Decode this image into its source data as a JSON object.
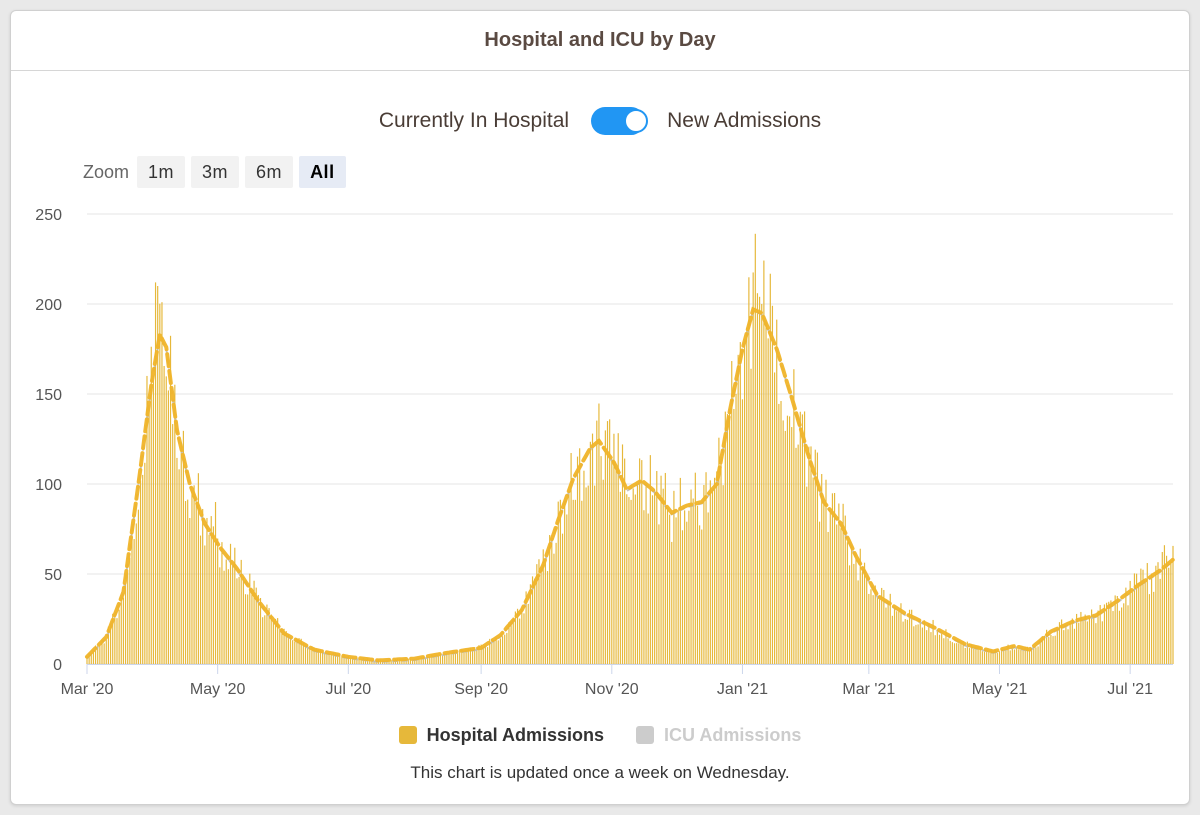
{
  "header": {
    "title": "Hospital and ICU by Day"
  },
  "toggle": {
    "left_label": "Currently In Hospital",
    "right_label": "New Admissions",
    "state": "New Admissions"
  },
  "zoom": {
    "label": "Zoom",
    "buttons": [
      {
        "label": "1m",
        "active": false
      },
      {
        "label": "3m",
        "active": false
      },
      {
        "label": "6m",
        "active": false
      },
      {
        "label": "All",
        "active": true
      }
    ]
  },
  "legend": {
    "hospital": {
      "label": "Hospital Admissions",
      "color": "#e6b83a"
    },
    "icu": {
      "label": "ICU Admissions",
      "color": "#cccccc"
    }
  },
  "note": "This chart is updated once a week on Wednesday.",
  "colors": {
    "bar": "#e6b83a",
    "line": "#f0b429",
    "icu_line": "#bdbdbd",
    "grid": "#e6e6e6"
  },
  "chart_data": {
    "type": "bar",
    "x_start": "2020-03-01",
    "x_end": "2021-07-21",
    "ylim": [
      0,
      250
    ],
    "yticks": [
      0,
      50,
      100,
      150,
      200,
      250
    ],
    "xtick_labels": [
      "Mar '20",
      "May '20",
      "Jul '20",
      "Sep '20",
      "Nov '20",
      "Jan '21",
      "Mar '21",
      "May '21",
      "Jul '21"
    ],
    "xtick_dates": [
      "2020-03-01",
      "2020-05-01",
      "2020-07-01",
      "2020-09-01",
      "2020-11-01",
      "2021-01-01",
      "2021-03-01",
      "2021-05-01",
      "2021-07-01"
    ],
    "trend_knots": [
      [
        "2020-03-01",
        4
      ],
      [
        "2020-03-10",
        15
      ],
      [
        "2020-03-18",
        40
      ],
      [
        "2020-03-25",
        100
      ],
      [
        "2020-03-31",
        155
      ],
      [
        "2020-04-04",
        183
      ],
      [
        "2020-04-07",
        176
      ],
      [
        "2020-04-12",
        130
      ],
      [
        "2020-04-18",
        100
      ],
      [
        "2020-04-25",
        78
      ],
      [
        "2020-05-02",
        65
      ],
      [
        "2020-05-10",
        53
      ],
      [
        "2020-05-20",
        35
      ],
      [
        "2020-06-01",
        17
      ],
      [
        "2020-06-15",
        8
      ],
      [
        "2020-07-01",
        4
      ],
      [
        "2020-07-15",
        2
      ],
      [
        "2020-08-01",
        3
      ],
      [
        "2020-08-15",
        6
      ],
      [
        "2020-09-01",
        9
      ],
      [
        "2020-09-10",
        16
      ],
      [
        "2020-09-20",
        30
      ],
      [
        "2020-09-30",
        55
      ],
      [
        "2020-10-07",
        80
      ],
      [
        "2020-10-14",
        103
      ],
      [
        "2020-10-22",
        120
      ],
      [
        "2020-10-26",
        124
      ],
      [
        "2020-11-02",
        112
      ],
      [
        "2020-11-08",
        97
      ],
      [
        "2020-11-15",
        102
      ],
      [
        "2020-11-21",
        96
      ],
      [
        "2020-11-29",
        84
      ],
      [
        "2020-12-06",
        88
      ],
      [
        "2020-12-13",
        90
      ],
      [
        "2020-12-20",
        100
      ],
      [
        "2020-12-26",
        140
      ],
      [
        "2021-01-01",
        175
      ],
      [
        "2021-01-06",
        197
      ],
      [
        "2021-01-10",
        195
      ],
      [
        "2021-01-17",
        175
      ],
      [
        "2021-01-24",
        148
      ],
      [
        "2021-02-01",
        115
      ],
      [
        "2021-02-08",
        90
      ],
      [
        "2021-02-16",
        78
      ],
      [
        "2021-02-23",
        60
      ],
      [
        "2021-03-05",
        38
      ],
      [
        "2021-03-18",
        28
      ],
      [
        "2021-04-01",
        20
      ],
      [
        "2021-04-15",
        11
      ],
      [
        "2021-04-28",
        7
      ],
      [
        "2021-05-08",
        10
      ],
      [
        "2021-05-15",
        8
      ],
      [
        "2021-05-25",
        18
      ],
      [
        "2021-06-05",
        24
      ],
      [
        "2021-06-15",
        27
      ],
      [
        "2021-06-25",
        35
      ],
      [
        "2021-07-05",
        44
      ],
      [
        "2021-07-15",
        52
      ],
      [
        "2021-07-21",
        58
      ]
    ],
    "spikes": [
      [
        "2020-04-02",
        212
      ],
      [
        "2020-04-03",
        210
      ],
      [
        "2020-04-05",
        201
      ],
      [
        "2020-04-22",
        106
      ],
      [
        "2020-04-30",
        90
      ],
      [
        "2020-10-23",
        128
      ],
      [
        "2020-12-29",
        150
      ],
      [
        "2021-01-07",
        239
      ],
      [
        "2021-01-08",
        206
      ],
      [
        "2021-01-09",
        204
      ],
      [
        "2021-01-10",
        200
      ],
      [
        "2021-02-13",
        95
      ],
      [
        "2021-07-17",
        66
      ],
      [
        "2021-07-20",
        57
      ]
    ]
  }
}
